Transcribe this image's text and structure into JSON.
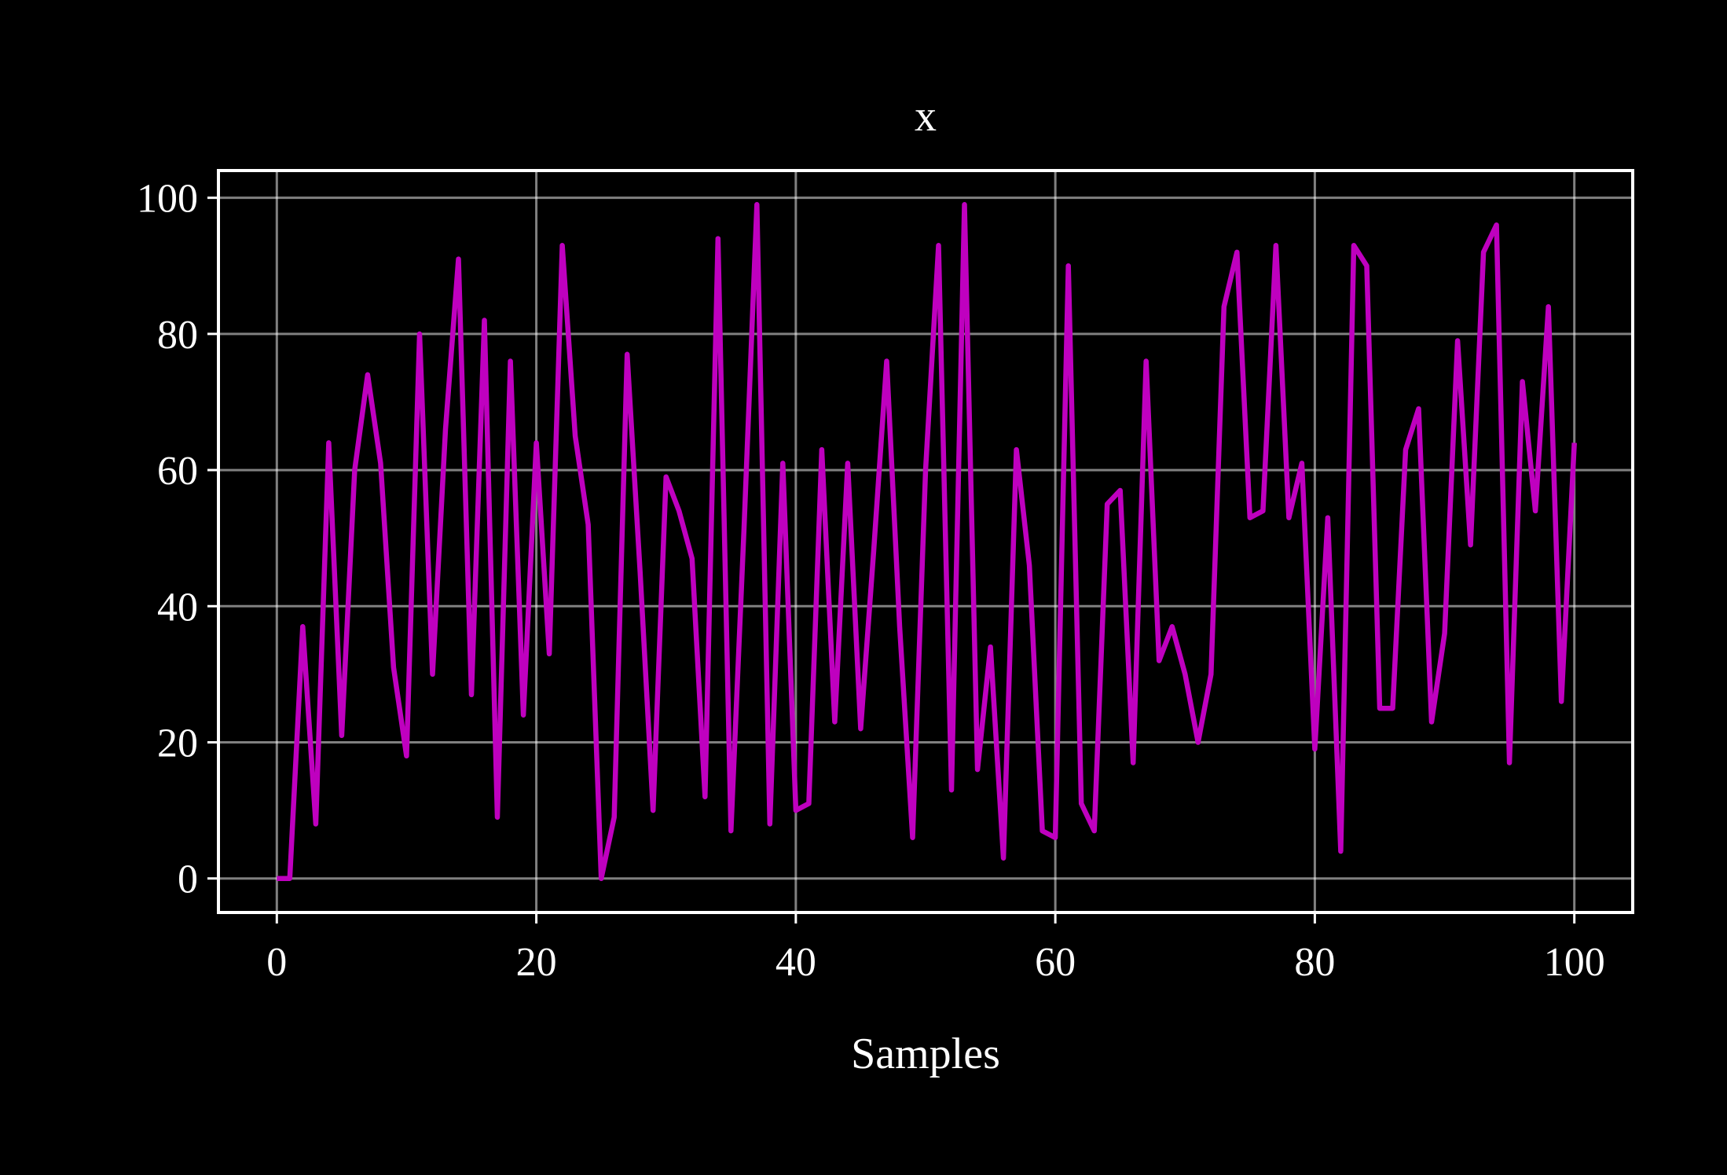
{
  "chart_data": {
    "type": "line",
    "title": "x",
    "xlabel": "Samples",
    "ylabel": "",
    "xlim": [
      -4.5,
      104.5
    ],
    "ylim": [
      -5,
      104
    ],
    "xticks": [
      0,
      20,
      40,
      60,
      80,
      100
    ],
    "yticks": [
      0,
      20,
      40,
      60,
      80,
      100
    ],
    "grid": true,
    "legend": "none",
    "colors": {
      "background": "#000000",
      "axes": "#ffffff",
      "grid": "#ffffff",
      "series": "#bf00bf"
    },
    "series": [
      {
        "values": [
          0,
          0,
          37,
          8,
          64,
          21,
          60,
          74,
          61,
          31,
          18,
          80,
          30,
          66,
          91,
          27,
          82,
          9,
          76,
          24,
          64,
          33,
          93,
          65,
          52,
          0,
          9,
          77,
          45,
          10,
          59,
          54,
          47,
          12,
          94,
          7,
          51,
          99,
          8,
          61,
          10,
          11,
          63,
          23,
          61,
          22,
          48,
          76,
          37,
          6,
          60,
          93,
          13,
          99,
          16,
          34,
          3,
          63,
          46,
          7,
          6,
          90,
          11,
          7,
          55,
          57,
          17,
          76,
          32,
          37,
          30,
          20,
          30,
          84,
          92,
          53,
          54,
          93,
          53,
          61,
          19,
          53,
          4,
          93,
          90,
          25,
          25,
          63,
          69,
          23,
          36,
          79,
          49,
          92,
          96,
          17,
          73,
          54,
          84,
          26,
          64
        ]
      }
    ]
  }
}
